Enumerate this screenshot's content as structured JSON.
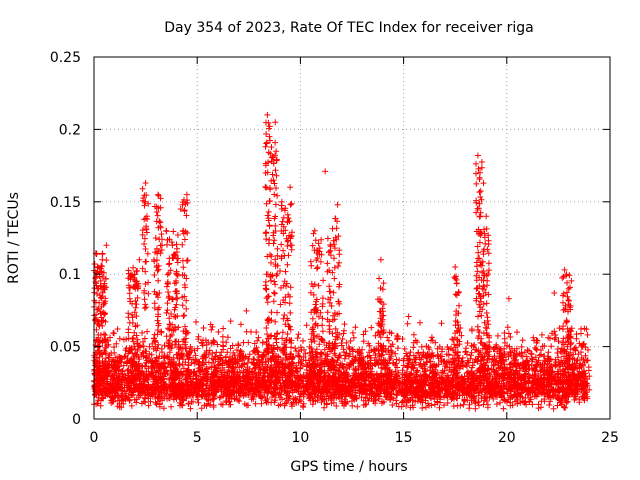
{
  "chart_data": {
    "type": "scatter",
    "title": "Day 354 of 2023, Rate Of TEC Index for receiver riga",
    "xlabel": "GPS time / hours",
    "ylabel": "ROTI / TECUs",
    "xlim": [
      0,
      25
    ],
    "ylim": [
      0,
      0.25
    ],
    "x_ticks": [
      0,
      5,
      10,
      15,
      20,
      25
    ],
    "x_tick_labels": [
      "0",
      "5",
      "10",
      "15",
      "20",
      "25"
    ],
    "y_ticks": [
      0,
      0.05,
      0.1,
      0.15,
      0.2,
      0.25
    ],
    "y_tick_labels": [
      "0",
      "0.05",
      "0.1",
      "0.15",
      "0.2",
      "0.25"
    ],
    "grid": true,
    "marker": "+",
    "color": "#ff0000",
    "series": [
      {
        "name": "ROTI",
        "notable_points": [
          {
            "x": 0.1,
            "y": 0.098
          },
          {
            "x": 0.4,
            "y": 0.11
          },
          {
            "x": 0.6,
            "y": 0.12
          },
          {
            "x": 1.8,
            "y": 0.1
          },
          {
            "x": 2.0,
            "y": 0.09
          },
          {
            "x": 2.2,
            "y": 0.11
          },
          {
            "x": 2.5,
            "y": 0.163
          },
          {
            "x": 3.1,
            "y": 0.155
          },
          {
            "x": 3.5,
            "y": 0.13
          },
          {
            "x": 3.8,
            "y": 0.12
          },
          {
            "x": 4.2,
            "y": 0.145
          },
          {
            "x": 4.5,
            "y": 0.155
          },
          {
            "x": 8.4,
            "y": 0.21
          },
          {
            "x": 8.5,
            "y": 0.195
          },
          {
            "x": 8.6,
            "y": 0.178
          },
          {
            "x": 8.7,
            "y": 0.165
          },
          {
            "x": 9.1,
            "y": 0.145
          },
          {
            "x": 9.5,
            "y": 0.16
          },
          {
            "x": 10.7,
            "y": 0.13
          },
          {
            "x": 11.2,
            "y": 0.171
          },
          {
            "x": 11.8,
            "y": 0.148
          },
          {
            "x": 13.9,
            "y": 0.11
          },
          {
            "x": 17.5,
            "y": 0.105
          },
          {
            "x": 18.6,
            "y": 0.182
          },
          {
            "x": 18.7,
            "y": 0.17
          },
          {
            "x": 19.0,
            "y": 0.14
          },
          {
            "x": 20.1,
            "y": 0.083
          },
          {
            "x": 22.3,
            "y": 0.087
          },
          {
            "x": 22.8,
            "y": 0.103
          },
          {
            "x": 23.0,
            "y": 0.09
          }
        ],
        "activity_bursts": [
          {
            "x_center": 0.3,
            "width": 0.6,
            "peak": 0.115,
            "count": 120
          },
          {
            "x_center": 1.9,
            "width": 0.5,
            "peak": 0.105,
            "count": 80
          },
          {
            "x_center": 2.5,
            "width": 0.3,
            "peak": 0.16,
            "count": 45
          },
          {
            "x_center": 3.1,
            "width": 0.4,
            "peak": 0.155,
            "count": 70
          },
          {
            "x_center": 3.8,
            "width": 0.6,
            "peak": 0.13,
            "count": 100
          },
          {
            "x_center": 4.4,
            "width": 0.3,
            "peak": 0.155,
            "count": 50
          },
          {
            "x_center": 8.6,
            "width": 0.6,
            "peak": 0.205,
            "count": 140
          },
          {
            "x_center": 9.3,
            "width": 0.6,
            "peak": 0.15,
            "count": 90
          },
          {
            "x_center": 10.8,
            "width": 0.6,
            "peak": 0.13,
            "count": 80
          },
          {
            "x_center": 11.6,
            "width": 0.6,
            "peak": 0.14,
            "count": 80
          },
          {
            "x_center": 13.9,
            "width": 0.3,
            "peak": 0.1,
            "count": 40
          },
          {
            "x_center": 17.6,
            "width": 0.3,
            "peak": 0.1,
            "count": 40
          },
          {
            "x_center": 18.7,
            "width": 0.4,
            "peak": 0.178,
            "count": 80
          },
          {
            "x_center": 19.0,
            "width": 0.3,
            "peak": 0.135,
            "count": 50
          },
          {
            "x_center": 22.9,
            "width": 0.5,
            "peak": 0.1,
            "count": 60
          }
        ],
        "baseline": {
          "x_start": 0,
          "x_end": 24,
          "y_low": 0.007,
          "y_high": 0.04,
          "typical": 0.022
        }
      }
    ]
  }
}
